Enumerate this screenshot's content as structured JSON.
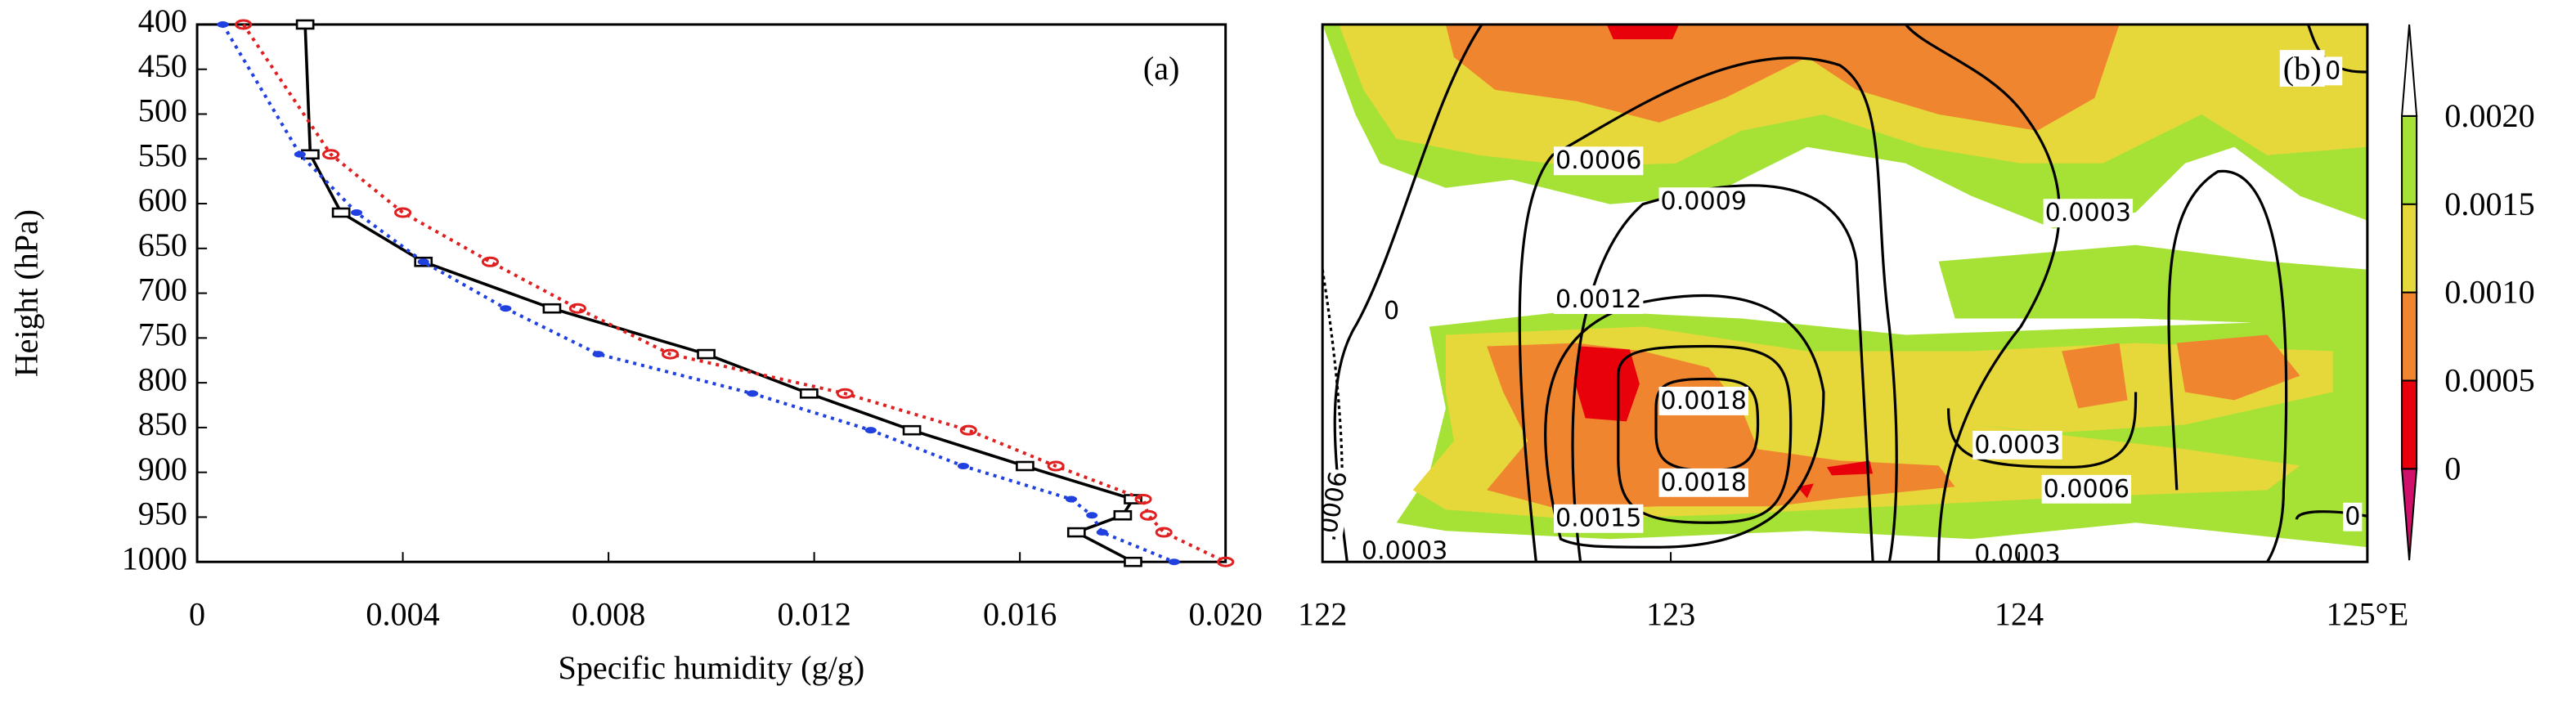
{
  "chart_data": [
    {
      "type": "line",
      "annotation": "(a)",
      "x_label": "Specific humidity (g/g)",
      "y_label": "Height (hPa)",
      "y": [
        400,
        545,
        610,
        665,
        717,
        768,
        812,
        853,
        893,
        930,
        948,
        967,
        1000
      ],
      "series": [
        {
          "color": "#000000",
          "line": "solid",
          "marker": "square",
          "values": [
            0.0021,
            0.0022,
            0.0028,
            0.0044,
            0.0069,
            0.0099,
            0.0119,
            0.0139,
            0.0161,
            0.0182,
            0.018,
            0.0171,
            0.0182
          ]
        },
        {
          "color": "#e02020",
          "line": "dotted",
          "marker": "circle",
          "values": [
            0.0009,
            0.0026,
            0.004,
            0.0057,
            0.0074,
            0.0092,
            0.0126,
            0.015,
            0.0167,
            0.0184,
            0.0185,
            0.0188,
            0.02
          ]
        },
        {
          "color": "#2040e0",
          "line": "dotted",
          "marker": "dot",
          "values": [
            0.0005,
            0.002,
            0.0031,
            0.0044,
            0.006,
            0.0078,
            0.0108,
            0.0131,
            0.0149,
            0.017,
            0.0174,
            0.0176,
            0.019
          ]
        }
      ],
      "xlim": [
        0,
        0.02
      ],
      "xticks": [
        0,
        0.004,
        0.008,
        0.012,
        0.016,
        {
          "value": 0.02,
          "label": "0.020"
        }
      ],
      "ylim": [
        1000,
        400
      ],
      "yticks": [
        400,
        450,
        500,
        550,
        600,
        650,
        700,
        750,
        800,
        850,
        900,
        950,
        1000
      ]
    },
    {
      "type": "contour",
      "annotation": "(b)",
      "xlim": [
        122,
        125
      ],
      "xticks": [
        122,
        123,
        124,
        {
          "value": 125,
          "label": "125°E"
        }
      ],
      "levels": [
        0,
        0.0005,
        {
          "value": 0.001,
          "label": "0.0010"
        },
        0.0015,
        {
          "value": 0.002,
          "label": "0.0020"
        }
      ],
      "colors": [
        "#d0106a",
        "#e8000b",
        "#f08530",
        "#e6d83a",
        "#a6e236",
        "#ffffff"
      ],
      "contour_labels": [
        "0.0006",
        "0.0009",
        "0.0003",
        "0.0012",
        "0.0018",
        "0.0003",
        "0.0006",
        "0.0018",
        "0.0015",
        "0.0003",
        "0.0003",
        "0",
        "0",
        "0",
        ".0006"
      ]
    }
  ]
}
